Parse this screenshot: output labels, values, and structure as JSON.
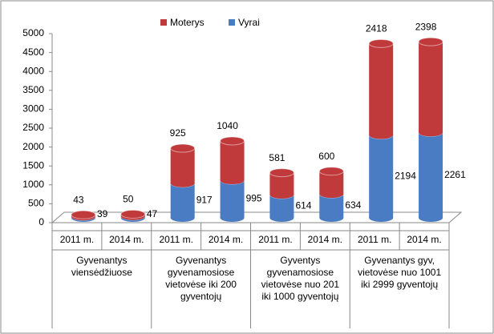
{
  "chart_data": {
    "type": "bar3d_stacked",
    "categories": [
      "2011 m.",
      "2014 m.",
      "2011 m.",
      "2014 m.",
      "2011 m.",
      "2014 m.",
      "2011 m.",
      "2014 m."
    ],
    "groups": [
      "Gyvenantys viensėdžiuose",
      "Gyvenantys gyvenamosiose vietovėse iki 200 gyventojų",
      "Gyventys gyvenamosiose vietovėse nuo 201 iki 1000 gyventojų",
      "Gyvenantys gyv, vietovėse nuo 1001 iki 2999 gyventojų"
    ],
    "series": [
      {
        "name": "Vyrai",
        "color": "#4a7cc4",
        "values": [
          39,
          47,
          917,
          995,
          614,
          634,
          2194,
          2261
        ]
      },
      {
        "name": "Moterys",
        "color": "#c0393b",
        "values": [
          43,
          50,
          925,
          1040,
          581,
          600,
          2418,
          2398
        ]
      }
    ],
    "ylim": [
      0,
      5000
    ],
    "yticks": [
      0,
      500,
      1000,
      1500,
      2000,
      2500,
      3000,
      3500,
      4000,
      4500,
      5000
    ]
  }
}
